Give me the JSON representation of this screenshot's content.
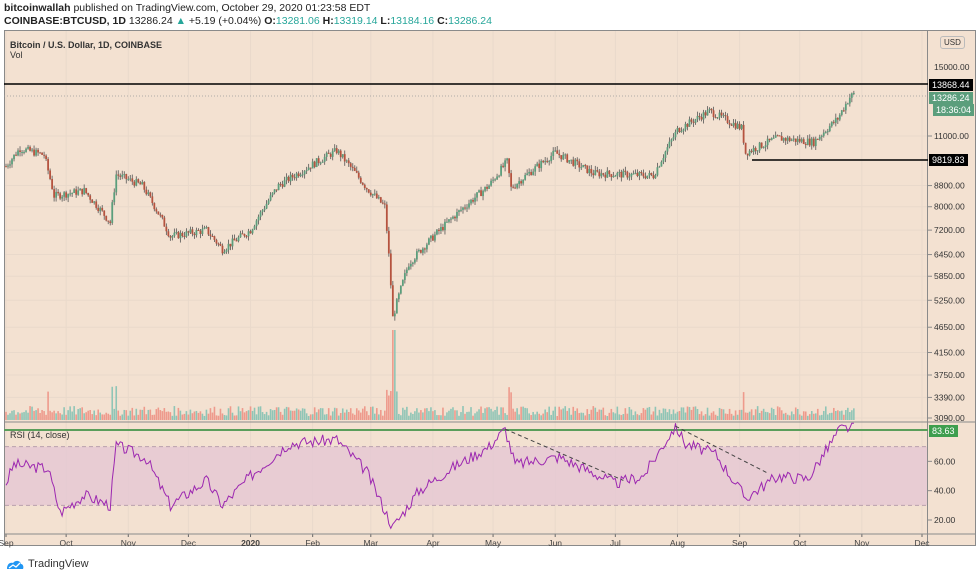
{
  "header": {
    "author": "bitcoinwallah",
    "published": "published on TradingView.com, October 29, 2020 01:23:58 EDT",
    "symbol": "COINBASE:BTCUSD, 1D",
    "last": "13286.24",
    "change_arrow": "▲",
    "change": "+5.19 (+0.04%)",
    "o_label": "O:",
    "o": "13281.06",
    "h_label": "H:",
    "h": "13319.14",
    "l_label": "L:",
    "l": "13184.16",
    "c_label": "C:",
    "c": "13286.24"
  },
  "legend": {
    "title": "Bitcoin / U.S. Dollar, 1D, COINBASE",
    "vol": "Vol",
    "rsi": "RSI (14, close)"
  },
  "price_axis": {
    "currency": "USD",
    "resistance_label": "13868.44",
    "last_label": "13286.24",
    "countdown": "18:36:04",
    "support_label": "9819.83",
    "rsi_label": "83.63"
  },
  "footer": {
    "brand": "TradingView"
  },
  "colors": {
    "background": "#f3e1d1",
    "up": "#5b9e7c",
    "down": "#b5533f",
    "vol_up": "#8fc5b6",
    "vol_down": "#ee9a8c",
    "rsi_line": "#9c27b0",
    "rsi_band": "#e5c8d4",
    "rsi_level": "#5a9e5a",
    "level_line": "#000000",
    "last_tag": "#5b9e7c"
  },
  "chart_data": [
    {
      "type": "candlestick",
      "title": "Bitcoin / U.S. Dollar, 1D, COINBASE",
      "xlabel": "",
      "ylabel": "USD",
      "x_ticks": [
        "Sep",
        "Oct",
        "Nov",
        "Dec",
        "2020",
        "Feb",
        "Mar",
        "Apr",
        "May",
        "Jun",
        "Jul",
        "Aug",
        "Sep",
        "Oct",
        "Nov",
        "Dec"
      ],
      "y_ticks": [
        3090,
        3390,
        3750,
        4150,
        4650,
        5250,
        5850,
        6450,
        7200,
        8000,
        8800,
        11000,
        15000
      ],
      "scale": "log",
      "horizontal_levels": [
        {
          "label": "resistance",
          "value": 13868.44
        },
        {
          "label": "support",
          "value": 9819.83
        },
        {
          "label": "last",
          "value": 13286.24
        }
      ],
      "approx_close_path": [
        {
          "x": "2019-09-01",
          "y": 9600
        },
        {
          "x": "2019-09-08",
          "y": 10400
        },
        {
          "x": "2019-09-20",
          "y": 10100
        },
        {
          "x": "2019-09-25",
          "y": 8400
        },
        {
          "x": "2019-10-10",
          "y": 8600
        },
        {
          "x": "2019-10-23",
          "y": 7450
        },
        {
          "x": "2019-10-26",
          "y": 9250
        },
        {
          "x": "2019-11-08",
          "y": 8800
        },
        {
          "x": "2019-11-22",
          "y": 7000
        },
        {
          "x": "2019-12-10",
          "y": 7200
        },
        {
          "x": "2019-12-18",
          "y": 6600
        },
        {
          "x": "2020-01-01",
          "y": 7200
        },
        {
          "x": "2020-01-15",
          "y": 8800
        },
        {
          "x": "2020-02-13",
          "y": 10300
        },
        {
          "x": "2020-02-28",
          "y": 8700
        },
        {
          "x": "2020-03-08",
          "y": 8000
        },
        {
          "x": "2020-03-12",
          "y": 4850
        },
        {
          "x": "2020-03-20",
          "y": 6200
        },
        {
          "x": "2020-04-06",
          "y": 7300
        },
        {
          "x": "2020-04-29",
          "y": 8800
        },
        {
          "x": "2020-05-08",
          "y": 9800
        },
        {
          "x": "2020-05-10",
          "y": 8700
        },
        {
          "x": "2020-06-01",
          "y": 10200
        },
        {
          "x": "2020-06-20",
          "y": 9300
        },
        {
          "x": "2020-07-20",
          "y": 9200
        },
        {
          "x": "2020-08-01",
          "y": 11300
        },
        {
          "x": "2020-08-17",
          "y": 12300
        },
        {
          "x": "2020-09-02",
          "y": 11400
        },
        {
          "x": "2020-09-04",
          "y": 10200
        },
        {
          "x": "2020-09-20",
          "y": 10900
        },
        {
          "x": "2020-10-08",
          "y": 10700
        },
        {
          "x": "2020-10-20",
          "y": 11900
        },
        {
          "x": "2020-10-26",
          "y": 13100
        },
        {
          "x": "2020-10-28",
          "y": 13286
        }
      ]
    },
    {
      "type": "line",
      "title": "RSI (14, close)",
      "y_ticks": [
        20,
        40,
        60
      ],
      "band": [
        30,
        70
      ],
      "last_value": 83.63,
      "annotations": [
        "dashed downtrend from May peak to early July",
        "dashed downtrend from Aug peak to mid Sep"
      ],
      "approx_points": [
        {
          "x": "2019-09-01",
          "y": 45
        },
        {
          "x": "2019-09-05",
          "y": 58
        },
        {
          "x": "2019-09-22",
          "y": 55
        },
        {
          "x": "2019-09-28",
          "y": 25
        },
        {
          "x": "2019-10-10",
          "y": 37
        },
        {
          "x": "2019-10-23",
          "y": 30
        },
        {
          "x": "2019-10-26",
          "y": 71
        },
        {
          "x": "2019-11-10",
          "y": 62
        },
        {
          "x": "2019-11-22",
          "y": 30
        },
        {
          "x": "2019-12-10",
          "y": 47
        },
        {
          "x": "2019-12-18",
          "y": 30
        },
        {
          "x": "2020-01-01",
          "y": 50
        },
        {
          "x": "2020-01-20",
          "y": 72
        },
        {
          "x": "2020-02-13",
          "y": 75
        },
        {
          "x": "2020-02-28",
          "y": 53
        },
        {
          "x": "2020-03-12",
          "y": 15
        },
        {
          "x": "2020-03-25",
          "y": 40
        },
        {
          "x": "2020-04-10",
          "y": 55
        },
        {
          "x": "2020-04-29",
          "y": 70
        },
        {
          "x": "2020-05-07",
          "y": 82
        },
        {
          "x": "2020-05-12",
          "y": 58
        },
        {
          "x": "2020-06-03",
          "y": 63
        },
        {
          "x": "2020-07-01",
          "y": 45
        },
        {
          "x": "2020-07-15",
          "y": 50
        },
        {
          "x": "2020-07-31",
          "y": 84
        },
        {
          "x": "2020-08-05",
          "y": 72
        },
        {
          "x": "2020-08-20",
          "y": 65
        },
        {
          "x": "2020-09-04",
          "y": 35
        },
        {
          "x": "2020-09-20",
          "y": 50
        },
        {
          "x": "2020-10-05",
          "y": 48
        },
        {
          "x": "2020-10-21",
          "y": 82
        },
        {
          "x": "2020-10-28",
          "y": 83.63
        }
      ]
    }
  ]
}
